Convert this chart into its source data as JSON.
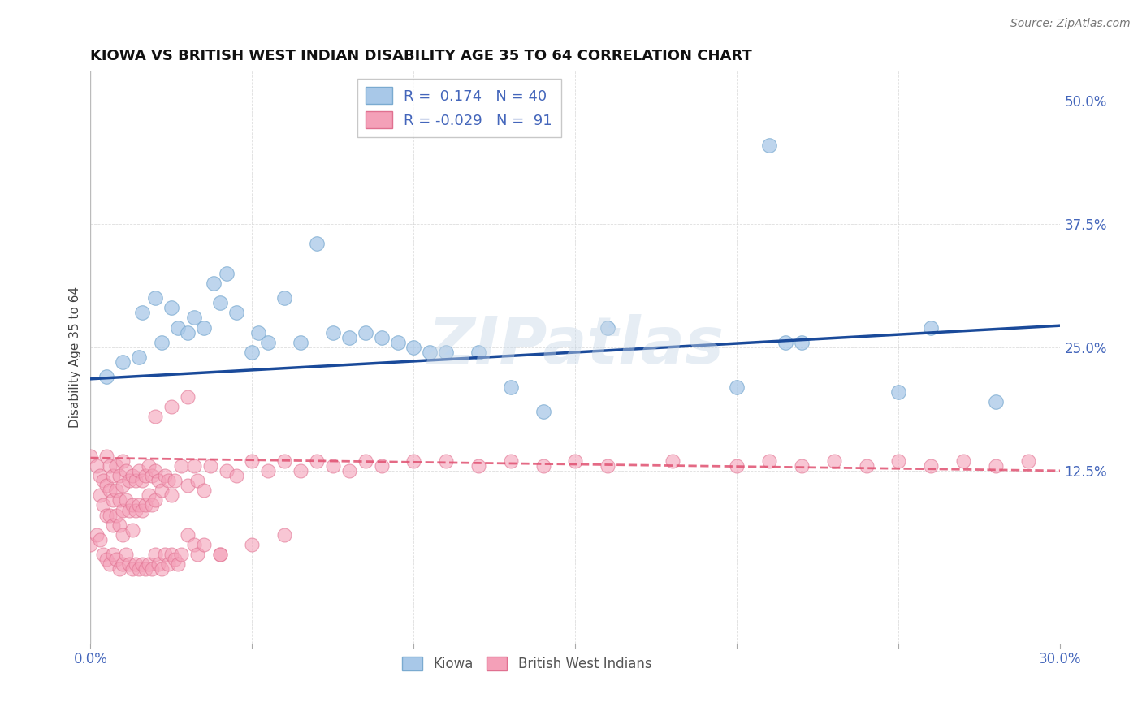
{
  "title": "KIOWA VS BRITISH WEST INDIAN DISABILITY AGE 35 TO 64 CORRELATION CHART",
  "source_text": "Source: ZipAtlas.com",
  "ylabel": "Disability Age 35 to 64",
  "xlim": [
    0.0,
    0.3
  ],
  "ylim": [
    -0.05,
    0.53
  ],
  "ytick_positions": [
    0.125,
    0.25,
    0.375,
    0.5
  ],
  "ytick_labels": [
    "12.5%",
    "25.0%",
    "37.5%",
    "50.0%"
  ],
  "background_color": "#ffffff",
  "grid_color": "#d0d0d0",
  "watermark": "ZIPatlas",
  "kiowa_R": 0.174,
  "kiowa_N": 40,
  "bwi_R": -0.029,
  "bwi_N": 91,
  "kiowa_color": "#a8c8e8",
  "kiowa_edge_color": "#7aaad0",
  "kiowa_line_color": "#1a4a9a",
  "bwi_color": "#f4a0b8",
  "bwi_edge_color": "#e07090",
  "bwi_line_color": "#e05070",
  "kiowa_scatter_x": [
    0.005,
    0.01,
    0.015,
    0.016,
    0.02,
    0.022,
    0.025,
    0.027,
    0.03,
    0.032,
    0.035,
    0.038,
    0.04,
    0.042,
    0.045,
    0.05,
    0.052,
    0.055,
    0.06,
    0.065,
    0.07,
    0.075,
    0.08,
    0.085,
    0.09,
    0.095,
    0.1,
    0.105,
    0.11,
    0.12,
    0.13,
    0.14,
    0.16,
    0.2,
    0.21,
    0.215,
    0.22,
    0.25,
    0.26,
    0.28
  ],
  "kiowa_scatter_y": [
    0.22,
    0.235,
    0.24,
    0.285,
    0.3,
    0.255,
    0.29,
    0.27,
    0.265,
    0.28,
    0.27,
    0.315,
    0.295,
    0.325,
    0.285,
    0.245,
    0.265,
    0.255,
    0.3,
    0.255,
    0.355,
    0.265,
    0.26,
    0.265,
    0.26,
    0.255,
    0.25,
    0.245,
    0.245,
    0.245,
    0.21,
    0.185,
    0.27,
    0.21,
    0.455,
    0.255,
    0.255,
    0.205,
    0.27,
    0.195
  ],
  "bwi_scatter_x": [
    0.0,
    0.002,
    0.003,
    0.003,
    0.004,
    0.004,
    0.005,
    0.005,
    0.005,
    0.006,
    0.006,
    0.006,
    0.007,
    0.007,
    0.007,
    0.008,
    0.008,
    0.008,
    0.009,
    0.009,
    0.009,
    0.01,
    0.01,
    0.01,
    0.01,
    0.011,
    0.011,
    0.012,
    0.012,
    0.013,
    0.013,
    0.013,
    0.014,
    0.014,
    0.015,
    0.015,
    0.016,
    0.016,
    0.017,
    0.017,
    0.018,
    0.018,
    0.019,
    0.019,
    0.02,
    0.02,
    0.021,
    0.022,
    0.023,
    0.024,
    0.025,
    0.026,
    0.028,
    0.03,
    0.032,
    0.033,
    0.035,
    0.037,
    0.04,
    0.042,
    0.045,
    0.05,
    0.055,
    0.06,
    0.065,
    0.07,
    0.075,
    0.08,
    0.085,
    0.09,
    0.1,
    0.11,
    0.12,
    0.13,
    0.14,
    0.15,
    0.16,
    0.18,
    0.2,
    0.21,
    0.22,
    0.23,
    0.24,
    0.25,
    0.26,
    0.27,
    0.28,
    0.29,
    0.02,
    0.025,
    0.03
  ],
  "bwi_scatter_y": [
    0.14,
    0.13,
    0.12,
    0.1,
    0.115,
    0.09,
    0.14,
    0.11,
    0.08,
    0.13,
    0.105,
    0.08,
    0.12,
    0.095,
    0.07,
    0.13,
    0.105,
    0.08,
    0.12,
    0.095,
    0.07,
    0.135,
    0.11,
    0.085,
    0.06,
    0.125,
    0.095,
    0.115,
    0.085,
    0.12,
    0.09,
    0.065,
    0.115,
    0.085,
    0.125,
    0.09,
    0.115,
    0.085,
    0.12,
    0.09,
    0.13,
    0.1,
    0.12,
    0.09,
    0.125,
    0.095,
    0.115,
    0.105,
    0.12,
    0.115,
    0.1,
    0.115,
    0.13,
    0.11,
    0.13,
    0.115,
    0.105,
    0.13,
    0.04,
    0.125,
    0.12,
    0.135,
    0.125,
    0.135,
    0.125,
    0.135,
    0.13,
    0.125,
    0.135,
    0.13,
    0.135,
    0.135,
    0.13,
    0.135,
    0.13,
    0.135,
    0.13,
    0.135,
    0.13,
    0.135,
    0.13,
    0.135,
    0.13,
    0.135,
    0.13,
    0.135,
    0.13,
    0.135,
    0.18,
    0.19,
    0.2
  ],
  "bwi_low_x": [
    0.0,
    0.002,
    0.003,
    0.004,
    0.005,
    0.006,
    0.007,
    0.008,
    0.009,
    0.01,
    0.011,
    0.012,
    0.013,
    0.014,
    0.015,
    0.016,
    0.017,
    0.018,
    0.019,
    0.02,
    0.021,
    0.022,
    0.023,
    0.024,
    0.025,
    0.026,
    0.027,
    0.028,
    0.03,
    0.032,
    0.033,
    0.035,
    0.04,
    0.05,
    0.06
  ],
  "bwi_low_y": [
    0.05,
    0.06,
    0.055,
    0.04,
    0.035,
    0.03,
    0.04,
    0.035,
    0.025,
    0.03,
    0.04,
    0.03,
    0.025,
    0.03,
    0.025,
    0.03,
    0.025,
    0.03,
    0.025,
    0.04,
    0.03,
    0.025,
    0.04,
    0.03,
    0.04,
    0.035,
    0.03,
    0.04,
    0.06,
    0.05,
    0.04,
    0.05,
    0.04,
    0.05,
    0.06
  ],
  "kiowa_line_x": [
    0.0,
    0.3
  ],
  "kiowa_line_y": [
    0.218,
    0.272
  ],
  "bwi_line_x": [
    0.0,
    0.3
  ],
  "bwi_line_y": [
    0.138,
    0.125
  ],
  "legend_fontsize": 13,
  "title_fontsize": 13,
  "axis_label_fontsize": 11,
  "tick_fontsize": 12,
  "source_fontsize": 10
}
